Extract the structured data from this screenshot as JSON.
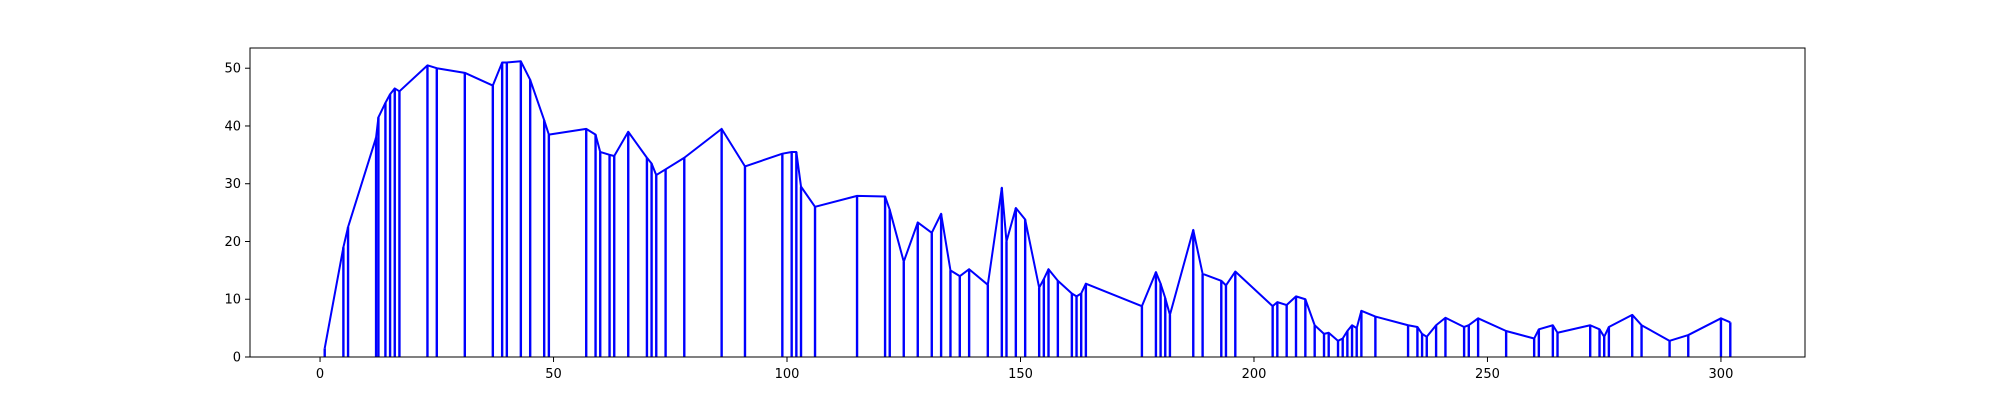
{
  "chart_data": {
    "type": "line",
    "title": "",
    "xlabel": "",
    "ylabel": "",
    "xlim": [
      -15,
      318
    ],
    "ylim": [
      0,
      53.5
    ],
    "xticks": [
      0,
      50,
      100,
      150,
      200,
      250,
      300
    ],
    "yticks": [
      0,
      10,
      20,
      30,
      40,
      50
    ],
    "xtick_labels": [
      "0",
      "50",
      "100",
      "150",
      "200",
      "250",
      "300"
    ],
    "ytick_labels": [
      "0",
      "10",
      "20",
      "30",
      "40",
      "50"
    ],
    "grid": false,
    "legend": null,
    "series": [
      {
        "color": "#0000ff",
        "style": "envelope-with-vertical-stems",
        "points": [
          [
            1,
            1.5
          ],
          [
            5,
            19
          ],
          [
            6,
            22.5
          ],
          [
            12,
            38
          ],
          [
            12.5,
            41.5
          ],
          [
            14,
            44
          ],
          [
            15,
            45.5
          ],
          [
            16,
            46.5
          ],
          [
            17,
            46
          ],
          [
            23,
            50.5
          ],
          [
            25,
            50
          ],
          [
            31,
            49.2
          ],
          [
            37,
            47
          ],
          [
            39,
            51
          ],
          [
            40,
            51
          ],
          [
            43,
            51.2
          ],
          [
            45,
            48
          ],
          [
            48,
            41
          ],
          [
            49,
            38.5
          ],
          [
            57,
            39.5
          ],
          [
            59,
            38.5
          ],
          [
            60,
            35.5
          ],
          [
            62,
            35
          ],
          [
            63,
            34.8
          ],
          [
            66,
            39
          ],
          [
            70,
            34.5
          ],
          [
            71,
            33.5
          ],
          [
            72,
            31.5
          ],
          [
            74,
            32.5
          ],
          [
            78,
            34.5
          ],
          [
            86,
            39.5
          ],
          [
            91,
            33
          ],
          [
            99,
            35.2
          ],
          [
            101,
            35.5
          ],
          [
            102,
            35.5
          ],
          [
            103,
            29.5
          ],
          [
            106,
            26
          ],
          [
            115,
            27.9
          ],
          [
            121,
            27.8
          ],
          [
            122,
            25.5
          ],
          [
            125,
            16.5
          ],
          [
            128,
            23.3
          ],
          [
            131,
            21.5
          ],
          [
            133,
            24.8
          ],
          [
            135,
            15
          ],
          [
            137,
            14
          ],
          [
            139,
            15.2
          ],
          [
            143,
            12.5
          ],
          [
            146,
            29.3
          ],
          [
            147,
            20
          ],
          [
            149,
            25.8
          ],
          [
            151,
            23.8
          ],
          [
            154,
            12
          ],
          [
            155,
            13.5
          ],
          [
            156,
            15.2
          ],
          [
            158,
            13.2
          ],
          [
            161,
            11
          ],
          [
            162,
            10.5
          ],
          [
            163,
            11
          ],
          [
            164,
            12.7
          ],
          [
            176,
            8.8
          ],
          [
            179,
            14.7
          ],
          [
            180,
            12.7
          ],
          [
            181,
            10.2
          ],
          [
            182,
            7.3
          ],
          [
            187,
            22
          ],
          [
            189,
            14.4
          ],
          [
            193,
            13.2
          ],
          [
            194,
            12.4
          ],
          [
            196,
            14.8
          ],
          [
            204,
            8.8
          ],
          [
            205,
            9.5
          ],
          [
            207,
            9
          ],
          [
            209,
            10.5
          ],
          [
            211,
            10
          ],
          [
            213,
            5.5
          ],
          [
            215,
            4
          ],
          [
            216,
            4.2
          ],
          [
            218,
            2.8
          ],
          [
            219,
            3.2
          ],
          [
            220,
            4.5
          ],
          [
            221,
            5.5
          ],
          [
            222,
            5
          ],
          [
            223,
            8
          ],
          [
            226,
            7
          ],
          [
            233,
            5.5
          ],
          [
            235,
            5.2
          ],
          [
            236,
            4
          ],
          [
            237,
            3.5
          ],
          [
            239,
            5.5
          ],
          [
            241,
            6.8
          ],
          [
            245,
            5.2
          ],
          [
            246,
            5.5
          ],
          [
            248,
            6.7
          ],
          [
            254,
            4.5
          ],
          [
            260,
            3.2
          ],
          [
            261,
            4.8
          ],
          [
            264,
            5.5
          ],
          [
            265,
            4.2
          ],
          [
            272,
            5.5
          ],
          [
            274,
            4.8
          ],
          [
            275,
            3.5
          ],
          [
            276,
            5.2
          ],
          [
            281,
            7.3
          ],
          [
            283,
            5.5
          ],
          [
            289,
            2.8
          ],
          [
            293,
            3.8
          ],
          [
            300,
            6.7
          ],
          [
            302,
            6
          ]
        ]
      }
    ]
  }
}
